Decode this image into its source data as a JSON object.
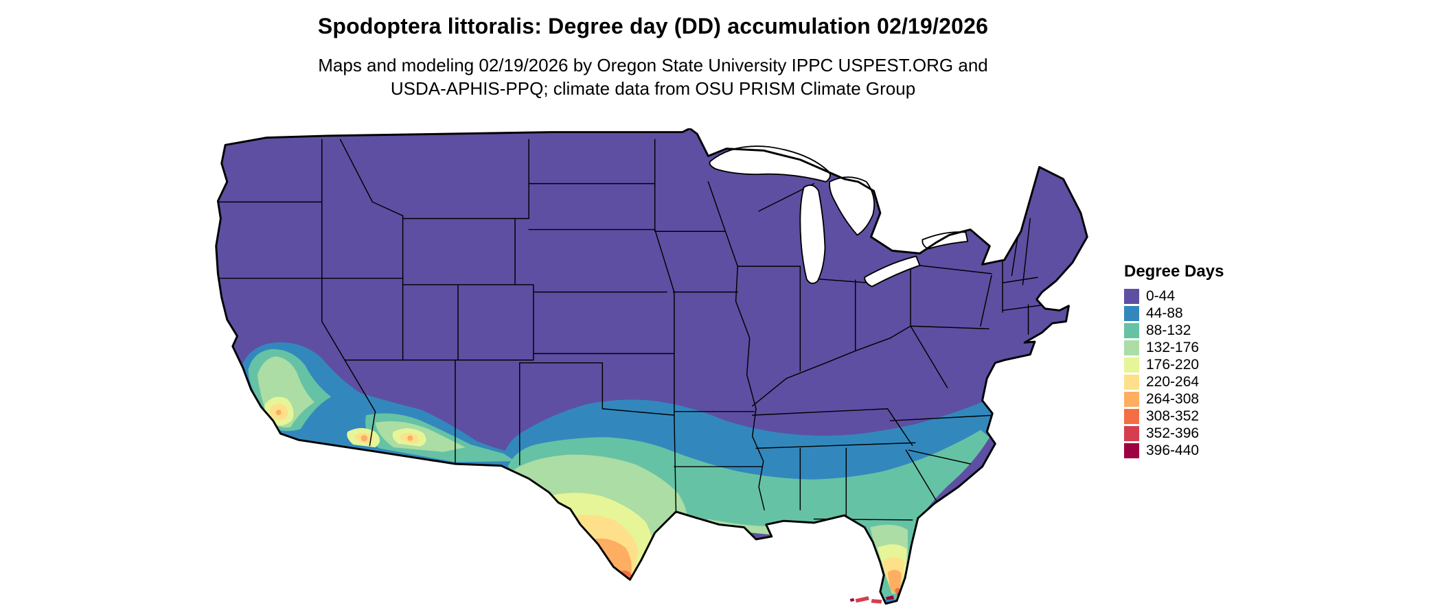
{
  "title": "Spodoptera littoralis: Degree day (DD) accumulation 02/19/2026",
  "subtitle": {
    "line1": "Maps and modeling 02/19/2026 by Oregon State University IPPC USPEST.ORG and",
    "line2": "USDA-APHIS-PPQ; climate data from OSU PRISM Climate Group"
  },
  "legend": {
    "title": "Degree Days",
    "entries": [
      {
        "label": "0-44",
        "color": "#5e4fa2"
      },
      {
        "label": "44-88",
        "color": "#3288bd"
      },
      {
        "label": "88-132",
        "color": "#66c2a5"
      },
      {
        "label": "132-176",
        "color": "#abdda4"
      },
      {
        "label": "176-220",
        "color": "#e6f598"
      },
      {
        "label": "220-264",
        "color": "#fee08b"
      },
      {
        "label": "264-308",
        "color": "#fdae61"
      },
      {
        "label": "308-352",
        "color": "#f46d43"
      },
      {
        "label": "352-396",
        "color": "#d53e4f"
      },
      {
        "label": "396-440",
        "color": "#9e0142"
      }
    ]
  },
  "map": {
    "region": "Continental United States",
    "border_color": "#000000",
    "background": "#ffffff"
  }
}
